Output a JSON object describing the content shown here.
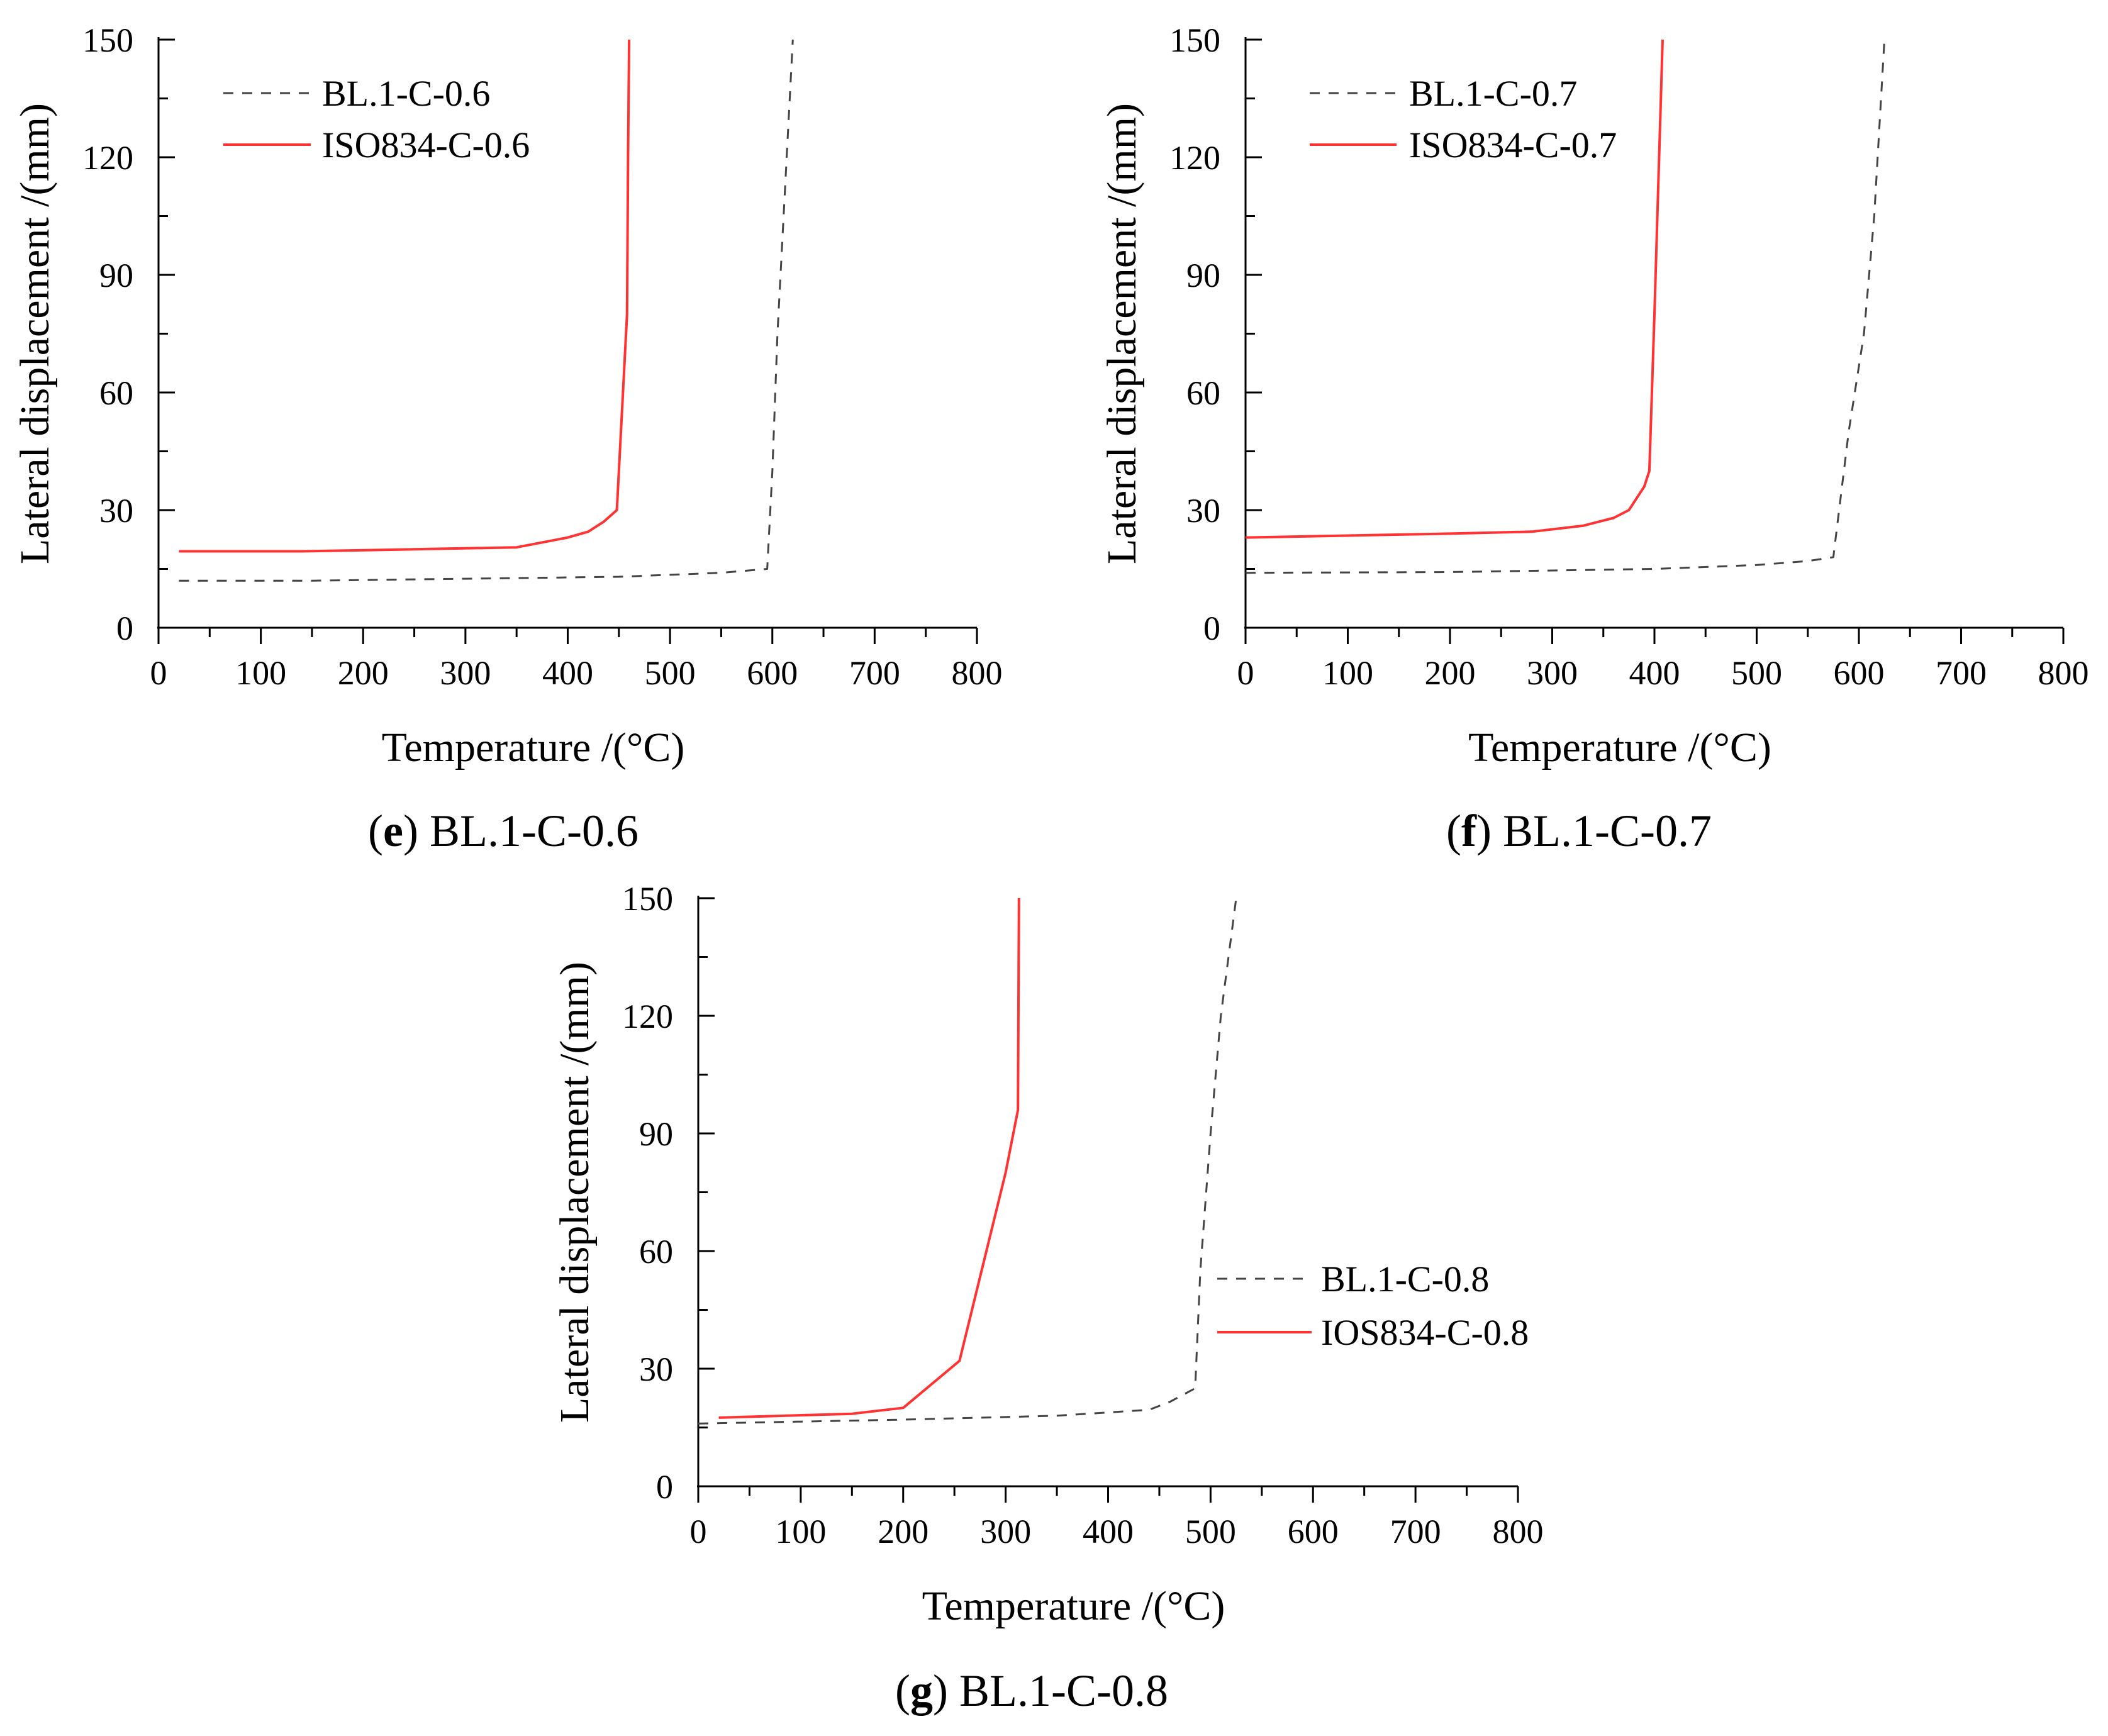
{
  "chart_data": [
    {
      "type": "line",
      "caption_letter": "e",
      "caption_text": "BL.1-C-0.6",
      "xlabel": "Temperature /(°C)",
      "ylabel": "Lateral displacement /(mm)",
      "xlim": [
        0,
        800
      ],
      "ylim": [
        0,
        150
      ],
      "xticks": [
        "0",
        "100",
        "200",
        "300",
        "400",
        "500",
        "600",
        "700",
        "800"
      ],
      "yticks": [
        "0",
        "30",
        "60",
        "90",
        "120",
        "150"
      ],
      "legend_position": "top-left",
      "series": [
        {
          "name": "BL.1-C-0.6",
          "style": "dashed",
          "color": "#444444",
          "x": [
            20,
            150,
            300,
            450,
            550,
            595,
            600,
            605,
            612,
            620
          ],
          "y": [
            12,
            12,
            12.5,
            13,
            14,
            15,
            40,
            75,
            110,
            150
          ]
        },
        {
          "name": "ISO834-C-0.6",
          "style": "solid",
          "color": "#ff3333",
          "x": [
            20,
            140,
            250,
            350,
            400,
            420,
            435,
            448,
            458,
            459,
            460
          ],
          "y": [
            19.5,
            19.5,
            20,
            20.5,
            23,
            24.5,
            27,
            30,
            80,
            120,
            150
          ]
        }
      ]
    },
    {
      "type": "line",
      "caption_letter": "f",
      "caption_text": "BL.1-C-0.7",
      "xlabel": "Temperature /(°C)",
      "ylabel": "Lateral displacement /(mm)",
      "xlim": [
        0,
        800
      ],
      "ylim": [
        0,
        150
      ],
      "xticks": [
        "0",
        "100",
        "200",
        "300",
        "400",
        "500",
        "600",
        "700",
        "800"
      ],
      "yticks": [
        "0",
        "30",
        "60",
        "90",
        "120",
        "150"
      ],
      "legend_position": "top-left",
      "series": [
        {
          "name": "BL.1-C-0.7",
          "style": "dashed",
          "color": "#444444",
          "x": [
            0,
            200,
            400,
            500,
            550,
            575,
            590,
            605,
            615,
            625
          ],
          "y": [
            14,
            14.2,
            15,
            16,
            17,
            18,
            50,
            75,
            105,
            150
          ]
        },
        {
          "name": "ISO834-C-0.7",
          "style": "solid",
          "color": "#ff3333",
          "x": [
            0,
            100,
            200,
            280,
            330,
            360,
            375,
            390,
            395,
            400,
            408
          ],
          "y": [
            23,
            23.5,
            24,
            24.5,
            26,
            28,
            30,
            36,
            40,
            80,
            150
          ]
        }
      ]
    },
    {
      "type": "line",
      "caption_letter": "g",
      "caption_text": "BL.1-C-0.8",
      "xlabel": "Temperature /(°C)",
      "ylabel": "Lateral displacement /(mm)",
      "xlim": [
        0,
        800
      ],
      "ylim": [
        0,
        150
      ],
      "xticks": [
        "0",
        "100",
        "200",
        "300",
        "400",
        "500",
        "600",
        "700",
        "800"
      ],
      "yticks": [
        "0",
        "30",
        "60",
        "90",
        "120",
        "150"
      ],
      "legend_position": "middle-right",
      "series": [
        {
          "name": "BL.1-C-0.8",
          "style": "dashed",
          "color": "#444444",
          "x": [
            0,
            200,
            350,
            440,
            460,
            485,
            490,
            500,
            510,
            525
          ],
          "y": [
            16,
            17,
            18,
            19.5,
            21.5,
            25,
            55,
            90,
            120,
            150
          ]
        },
        {
          "name": "IOS834-C-0.8",
          "style": "solid",
          "color": "#ff3333",
          "x": [
            20,
            150,
            200,
            255,
            300,
            312,
            313
          ],
          "y": [
            17.5,
            18.5,
            20,
            32,
            80,
            96,
            150
          ]
        }
      ]
    }
  ]
}
